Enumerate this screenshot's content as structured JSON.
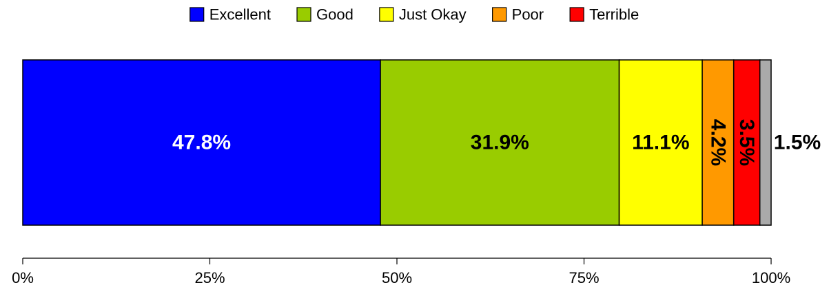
{
  "chart_data": {
    "type": "bar",
    "orientation": "horizontal-stacked",
    "title": "",
    "xlabel": "",
    "ylabel": "",
    "xlim": [
      0,
      100
    ],
    "x_ticks": [
      0,
      25,
      50,
      75,
      100
    ],
    "x_tick_labels": [
      "0%",
      "25%",
      "50%",
      "75%",
      "100%"
    ],
    "grid": false,
    "legend_placement": "top-center",
    "series": [
      {
        "name": "Excellent",
        "value": 47.8,
        "label": "47.8%",
        "color": "#0000ff",
        "label_color": "#ffffff",
        "label_rotation": 0
      },
      {
        "name": "Good",
        "value": 31.9,
        "label": "31.9%",
        "color": "#99cc00",
        "label_color": "#000000",
        "label_rotation": 0
      },
      {
        "name": "Just Okay",
        "value": 11.1,
        "label": "11.1%",
        "color": "#ffff00",
        "label_color": "#000000",
        "label_rotation": 0
      },
      {
        "name": "Poor",
        "value": 4.2,
        "label": "4.2%",
        "color": "#ff9900",
        "label_color": "#000000",
        "label_rotation": 90
      },
      {
        "name": "Terrible",
        "value": 3.5,
        "label": "3.5%",
        "color": "#ff0000",
        "label_color": "#000000",
        "label_rotation": 90
      },
      {
        "name": "",
        "value": 1.5,
        "label": "1.5%",
        "color": "#aaaaaa",
        "label_color": "#000000",
        "label_rotation": 0,
        "label_outside": true
      }
    ]
  }
}
